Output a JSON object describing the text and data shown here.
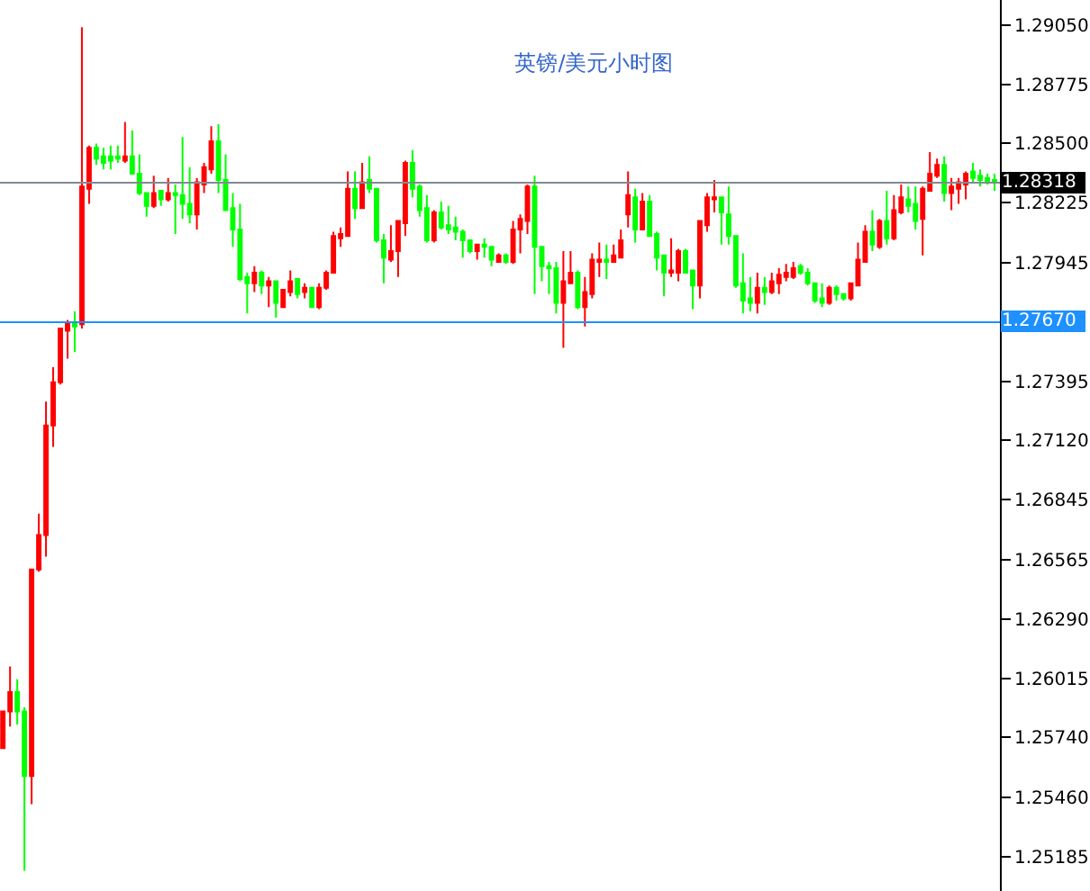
{
  "chart_data": {
    "type": "candlestick",
    "title": "英镑/美元小时图",
    "ylim": [
      1.25026,
      1.29167
    ],
    "yticks": [
      {
        "value": 1.25185,
        "label": "1.25185"
      },
      {
        "value": 1.2546,
        "label": "1.25460"
      },
      {
        "value": 1.2574,
        "label": "1.25740"
      },
      {
        "value": 1.26015,
        "label": "1.26015"
      },
      {
        "value": 1.2629,
        "label": "1.26290"
      },
      {
        "value": 1.26565,
        "label": "1.26565"
      },
      {
        "value": 1.26845,
        "label": "1.26845"
      },
      {
        "value": 1.2712,
        "label": "1.27120"
      },
      {
        "value": 1.27395,
        "label": "1.27395"
      },
      {
        "value": 1.2767,
        "label": null
      },
      {
        "value": 1.27945,
        "label": "1.27945"
      },
      {
        "value": 1.28225,
        "label": "1.28225"
      },
      {
        "value": 1.285,
        "label": "1.28500"
      },
      {
        "value": 1.28775,
        "label": "1.28775"
      },
      {
        "value": 1.2905,
        "label": "1.29050"
      }
    ],
    "tick_labels": "y",
    "ref_lines": [
      {
        "axis": "y",
        "value": 1.28318,
        "label": "1.28318",
        "color": "#808a94"
      },
      {
        "axis": "y",
        "value": 1.2767,
        "label": "1.27670",
        "color": "#1e90ff"
      }
    ],
    "ohlc": [
      [
        1.2569,
        1.2586,
        1.2569,
        1.2586
      ],
      [
        1.2586,
        1.2607,
        1.2579,
        1.2595
      ],
      [
        1.2595,
        1.2601,
        1.258,
        1.2586
      ],
      [
        1.2586,
        1.2588,
        1.2512,
        1.2556
      ],
      [
        1.2556,
        1.2652,
        1.2543,
        1.2652
      ],
      [
        1.2652,
        1.2678,
        1.2651,
        1.2668
      ],
      [
        1.2668,
        1.273,
        1.2658,
        1.2719
      ],
      [
        1.2719,
        1.2746,
        1.2709,
        1.2739
      ],
      [
        1.2739,
        1.2764,
        1.2738,
        1.2764
      ],
      [
        1.2763,
        1.2768,
        1.275,
        1.2767
      ],
      [
        1.2767,
        1.2772,
        1.2753,
        1.2765
      ],
      [
        1.2766,
        1.2904,
        1.2764,
        1.283
      ],
      [
        1.2829,
        1.2849,
        1.2822,
        1.2848
      ],
      [
        1.2848,
        1.285,
        1.284,
        1.2843
      ],
      [
        1.2844,
        1.2848,
        1.2838,
        1.2841
      ],
      [
        1.2844,
        1.2849,
        1.2838,
        1.2842
      ],
      [
        1.2844,
        1.2849,
        1.2841,
        1.2843
      ],
      [
        1.2842,
        1.286,
        1.2841,
        1.2844
      ],
      [
        1.2844,
        1.2856,
        1.2836,
        1.2836
      ],
      [
        1.2836,
        1.2845,
        1.2826,
        1.2827
      ],
      [
        1.2827,
        1.2827,
        1.2816,
        1.2821
      ],
      [
        1.2821,
        1.2835,
        1.282,
        1.2827
      ],
      [
        1.2828,
        1.2828,
        1.2821,
        1.2824
      ],
      [
        1.2824,
        1.2834,
        1.2823,
        1.2827
      ],
      [
        1.2827,
        1.2831,
        1.2808,
        1.2826
      ],
      [
        1.2826,
        1.2853,
        1.2815,
        1.2822
      ],
      [
        1.2822,
        1.2839,
        1.2813,
        1.2817
      ],
      [
        1.2817,
        1.2834,
        1.281,
        1.2832
      ],
      [
        1.2831,
        1.2841,
        1.2827,
        1.2839
      ],
      [
        1.2838,
        1.2858,
        1.2836,
        1.2851
      ],
      [
        1.2851,
        1.2859,
        1.2827,
        1.2833
      ],
      [
        1.2833,
        1.2845,
        1.2819,
        1.2819
      ],
      [
        1.282,
        1.2827,
        1.2802,
        1.281
      ],
      [
        1.281,
        1.2822,
        1.2786,
        1.2787
      ],
      [
        1.2788,
        1.279,
        1.2771,
        1.2785
      ],
      [
        1.2785,
        1.2793,
        1.2781,
        1.279
      ],
      [
        1.279,
        1.2791,
        1.278,
        1.2784
      ],
      [
        1.2784,
        1.2788,
        1.2774,
        1.2786
      ],
      [
        1.2786,
        1.2786,
        1.2769,
        1.2776
      ],
      [
        1.2774,
        1.2782,
        1.2774,
        1.2782
      ],
      [
        1.2781,
        1.2791,
        1.2779,
        1.2786
      ],
      [
        1.2787,
        1.2787,
        1.2778,
        1.278
      ],
      [
        1.2781,
        1.2785,
        1.2778,
        1.2783
      ],
      [
        1.2783,
        1.2783,
        1.2774,
        1.2774
      ],
      [
        1.2774,
        1.2785,
        1.2773,
        1.2783
      ],
      [
        1.2783,
        1.2791,
        1.2782,
        1.279
      ],
      [
        1.279,
        1.2809,
        1.279,
        1.2807
      ],
      [
        1.2806,
        1.2811,
        1.2802,
        1.2808
      ],
      [
        1.2807,
        1.2837,
        1.2807,
        1.2829
      ],
      [
        1.2829,
        1.2837,
        1.2815,
        1.282
      ],
      [
        1.282,
        1.2841,
        1.282,
        1.2832
      ],
      [
        1.2833,
        1.2844,
        1.2827,
        1.2829
      ],
      [
        1.2829,
        1.2829,
        1.2804,
        1.2805
      ],
      [
        1.2805,
        1.2808,
        1.2785,
        1.2797
      ],
      [
        1.2796,
        1.2812,
        1.2795,
        1.28
      ],
      [
        1.28,
        1.2814,
        1.2788,
        1.2814
      ],
      [
        1.2813,
        1.2842,
        1.2807,
        1.2841
      ],
      [
        1.2841,
        1.2847,
        1.2825,
        1.2829
      ],
      [
        1.283,
        1.2831,
        1.2816,
        1.2819
      ],
      [
        1.282,
        1.2826,
        1.2804,
        1.2805
      ],
      [
        1.2805,
        1.2819,
        1.2804,
        1.2818
      ],
      [
        1.2818,
        1.2823,
        1.281,
        1.2811
      ],
      [
        1.2812,
        1.2821,
        1.2808,
        1.281
      ],
      [
        1.2811,
        1.2816,
        1.2805,
        1.2809
      ],
      [
        1.2809,
        1.281,
        1.2797,
        1.2805
      ],
      [
        1.2805,
        1.2805,
        1.2799,
        1.28
      ],
      [
        1.28,
        1.2803,
        1.2796,
        1.2803
      ],
      [
        1.2803,
        1.2806,
        1.2797,
        1.2802
      ],
      [
        1.2802,
        1.2802,
        1.2793,
        1.2796
      ],
      [
        1.2795,
        1.2799,
        1.2795,
        1.2798
      ],
      [
        1.2798,
        1.2799,
        1.2794,
        1.2795
      ],
      [
        1.2795,
        1.2814,
        1.2794,
        1.281
      ],
      [
        1.281,
        1.2817,
        1.2799,
        1.2815
      ],
      [
        1.2814,
        1.2831,
        1.2808,
        1.283
      ],
      [
        1.283,
        1.2835,
        1.278,
        1.2802
      ],
      [
        1.2802,
        1.2802,
        1.2786,
        1.2793
      ],
      [
        1.2793,
        1.2795,
        1.278,
        1.2792
      ],
      [
        1.2792,
        1.2795,
        1.2771,
        1.2776
      ],
      [
        1.2776,
        1.28,
        1.2755,
        1.2786
      ],
      [
        1.2785,
        1.28,
        1.2785,
        1.279
      ],
      [
        1.279,
        1.2791,
        1.2773,
        1.2774
      ],
      [
        1.2774,
        1.2788,
        1.2765,
        1.2781
      ],
      [
        1.278,
        1.2799,
        1.2778,
        1.2796
      ],
      [
        1.2795,
        1.2804,
        1.2788,
        1.2796
      ],
      [
        1.2796,
        1.2803,
        1.2787,
        1.2795
      ],
      [
        1.2795,
        1.2803,
        1.2795,
        1.2798
      ],
      [
        1.2797,
        1.281,
        1.2797,
        1.2805
      ],
      [
        1.2817,
        1.2837,
        1.2811,
        1.2826
      ],
      [
        1.2825,
        1.2829,
        1.2804,
        1.281
      ],
      [
        1.281,
        1.2827,
        1.281,
        1.2823
      ],
      [
        1.2823,
        1.2826,
        1.2807,
        1.2807
      ],
      [
        1.2808,
        1.2809,
        1.2791,
        1.2797
      ],
      [
        1.2798,
        1.2798,
        1.2779,
        1.279
      ],
      [
        1.279,
        1.2806,
        1.2788,
        1.2791
      ],
      [
        1.279,
        1.2801,
        1.2786,
        1.28
      ],
      [
        1.28,
        1.2801,
        1.279,
        1.279
      ],
      [
        1.2791,
        1.2791,
        1.2773,
        1.2784
      ],
      [
        1.2784,
        1.2814,
        1.2778,
        1.2814
      ],
      [
        1.2812,
        1.2827,
        1.2809,
        1.2825
      ],
      [
        1.2824,
        1.2833,
        1.2818,
        1.2825
      ],
      [
        1.2825,
        1.2825,
        1.2803,
        1.2818
      ],
      [
        1.2817,
        1.283,
        1.2803,
        1.2807
      ],
      [
        1.2807,
        1.2807,
        1.2783,
        1.2784
      ],
      [
        1.2785,
        1.2799,
        1.2771,
        1.2777
      ],
      [
        1.2778,
        1.2788,
        1.2772,
        1.2776
      ],
      [
        1.2776,
        1.279,
        1.2771,
        1.2783
      ],
      [
        1.2783,
        1.2788,
        1.2775,
        1.2781
      ],
      [
        1.2781,
        1.279,
        1.278,
        1.2786
      ],
      [
        1.2785,
        1.2792,
        1.278,
        1.2789
      ],
      [
        1.2788,
        1.2794,
        1.2786,
        1.279
      ],
      [
        1.2788,
        1.2795,
        1.2787,
        1.2792
      ],
      [
        1.2793,
        1.2794,
        1.2789,
        1.279
      ],
      [
        1.279,
        1.2792,
        1.2784,
        1.2785
      ],
      [
        1.2785,
        1.2785,
        1.2776,
        1.2777
      ],
      [
        1.2778,
        1.2785,
        1.2774,
        1.2776
      ],
      [
        1.2776,
        1.2784,
        1.2775,
        1.2783
      ],
      [
        1.2783,
        1.2784,
        1.2777,
        1.278
      ],
      [
        1.278,
        1.278,
        1.2777,
        1.2778
      ],
      [
        1.2778,
        1.2785,
        1.2777,
        1.2785
      ],
      [
        1.2784,
        1.2804,
        1.2784,
        1.2796
      ],
      [
        1.2795,
        1.2812,
        1.2795,
        1.2809
      ],
      [
        1.2809,
        1.2819,
        1.28,
        1.2803
      ],
      [
        1.2802,
        1.2815,
        1.2801,
        1.2814
      ],
      [
        1.2814,
        1.2828,
        1.2803,
        1.2806
      ],
      [
        1.2806,
        1.2826,
        1.2805,
        1.2819
      ],
      [
        1.2818,
        1.2831,
        1.2817,
        1.2825
      ],
      [
        1.2824,
        1.283,
        1.2818,
        1.2821
      ],
      [
        1.2822,
        1.283,
        1.281,
        1.2814
      ],
      [
        1.2815,
        1.283,
        1.2798,
        1.2829
      ],
      [
        1.2828,
        1.2846,
        1.2828,
        1.2836
      ],
      [
        1.2835,
        1.2843,
        1.2834,
        1.284
      ],
      [
        1.284,
        1.2844,
        1.2823,
        1.2827
      ],
      [
        1.2827,
        1.2834,
        1.2819,
        1.283
      ],
      [
        1.2829,
        1.2834,
        1.2822,
        1.2832
      ],
      [
        1.2831,
        1.2837,
        1.2824,
        1.2836
      ],
      [
        1.2837,
        1.2841,
        1.2832,
        1.2834
      ],
      [
        1.2835,
        1.2838,
        1.283,
        1.2833
      ],
      [
        1.2834,
        1.2836,
        1.2831,
        1.2832
      ],
      [
        1.2833,
        1.2836,
        1.2828,
        1.2832
      ]
    ],
    "colors": [
      "#ff0000",
      "#ff0000",
      "#00ff00",
      "#00ff00",
      "#ff0000",
      "#ff0000",
      "#ff0000",
      "#ff0000",
      "#ff0000",
      "#ff0000",
      "#00ff00",
      "#ff0000",
      "#ff0000",
      "#00ff00",
      "#00ff00",
      "#00ff00",
      "#00ff00",
      "#ff0000",
      "#00ff00",
      "#00ff00",
      "#00ff00",
      "#ff0000",
      "#00ff00",
      "#ff0000",
      "#00ff00",
      "#00ff00",
      "#00ff00",
      "#ff0000",
      "#ff0000",
      "#ff0000",
      "#00ff00",
      "#00ff00",
      "#00ff00",
      "#00ff00",
      "#00ff00",
      "#ff0000",
      "#00ff00",
      "#ff0000",
      "#00ff00",
      "#ff0000",
      "#ff0000",
      "#00ff00",
      "#ff0000",
      "#00ff00",
      "#ff0000",
      "#ff0000",
      "#ff0000",
      "#ff0000",
      "#ff0000",
      "#00ff00",
      "#ff0000",
      "#00ff00",
      "#00ff00",
      "#00ff00",
      "#ff0000",
      "#ff0000",
      "#ff0000",
      "#00ff00",
      "#00ff00",
      "#00ff00",
      "#ff0000",
      "#00ff00",
      "#00ff00",
      "#00ff00",
      "#00ff00",
      "#00ff00",
      "#ff0000",
      "#00ff00",
      "#00ff00",
      "#ff0000",
      "#00ff00",
      "#ff0000",
      "#ff0000",
      "#ff0000",
      "#00ff00",
      "#00ff00",
      "#00ff00",
      "#00ff00",
      "#ff0000",
      "#ff0000",
      "#00ff00",
      "#ff0000",
      "#ff0000",
      "#ff0000",
      "#00ff00",
      "#ff0000",
      "#ff0000",
      "#ff0000",
      "#00ff00",
      "#ff0000",
      "#00ff00",
      "#00ff00",
      "#00ff00",
      "#ff0000",
      "#ff0000",
      "#00ff00",
      "#00ff00",
      "#ff0000",
      "#ff0000",
      "#ff0000",
      "#00ff00",
      "#00ff00",
      "#00ff00",
      "#00ff00",
      "#00ff00",
      "#ff0000",
      "#00ff00",
      "#ff0000",
      "#ff0000",
      "#ff0000",
      "#ff0000",
      "#00ff00",
      "#00ff00",
      "#00ff00",
      "#00ff00",
      "#ff0000",
      "#00ff00",
      "#00ff00",
      "#ff0000",
      "#ff0000",
      "#ff0000",
      "#00ff00",
      "#ff0000",
      "#00ff00",
      "#ff0000",
      "#ff0000",
      "#00ff00",
      "#00ff00",
      "#ff0000",
      "#ff0000",
      "#ff0000",
      "#00ff00",
      "#ff0000",
      "#ff0000",
      "#ff0000",
      "#00ff00",
      "#00ff00",
      "#00ff00",
      "#00ff00"
    ]
  }
}
